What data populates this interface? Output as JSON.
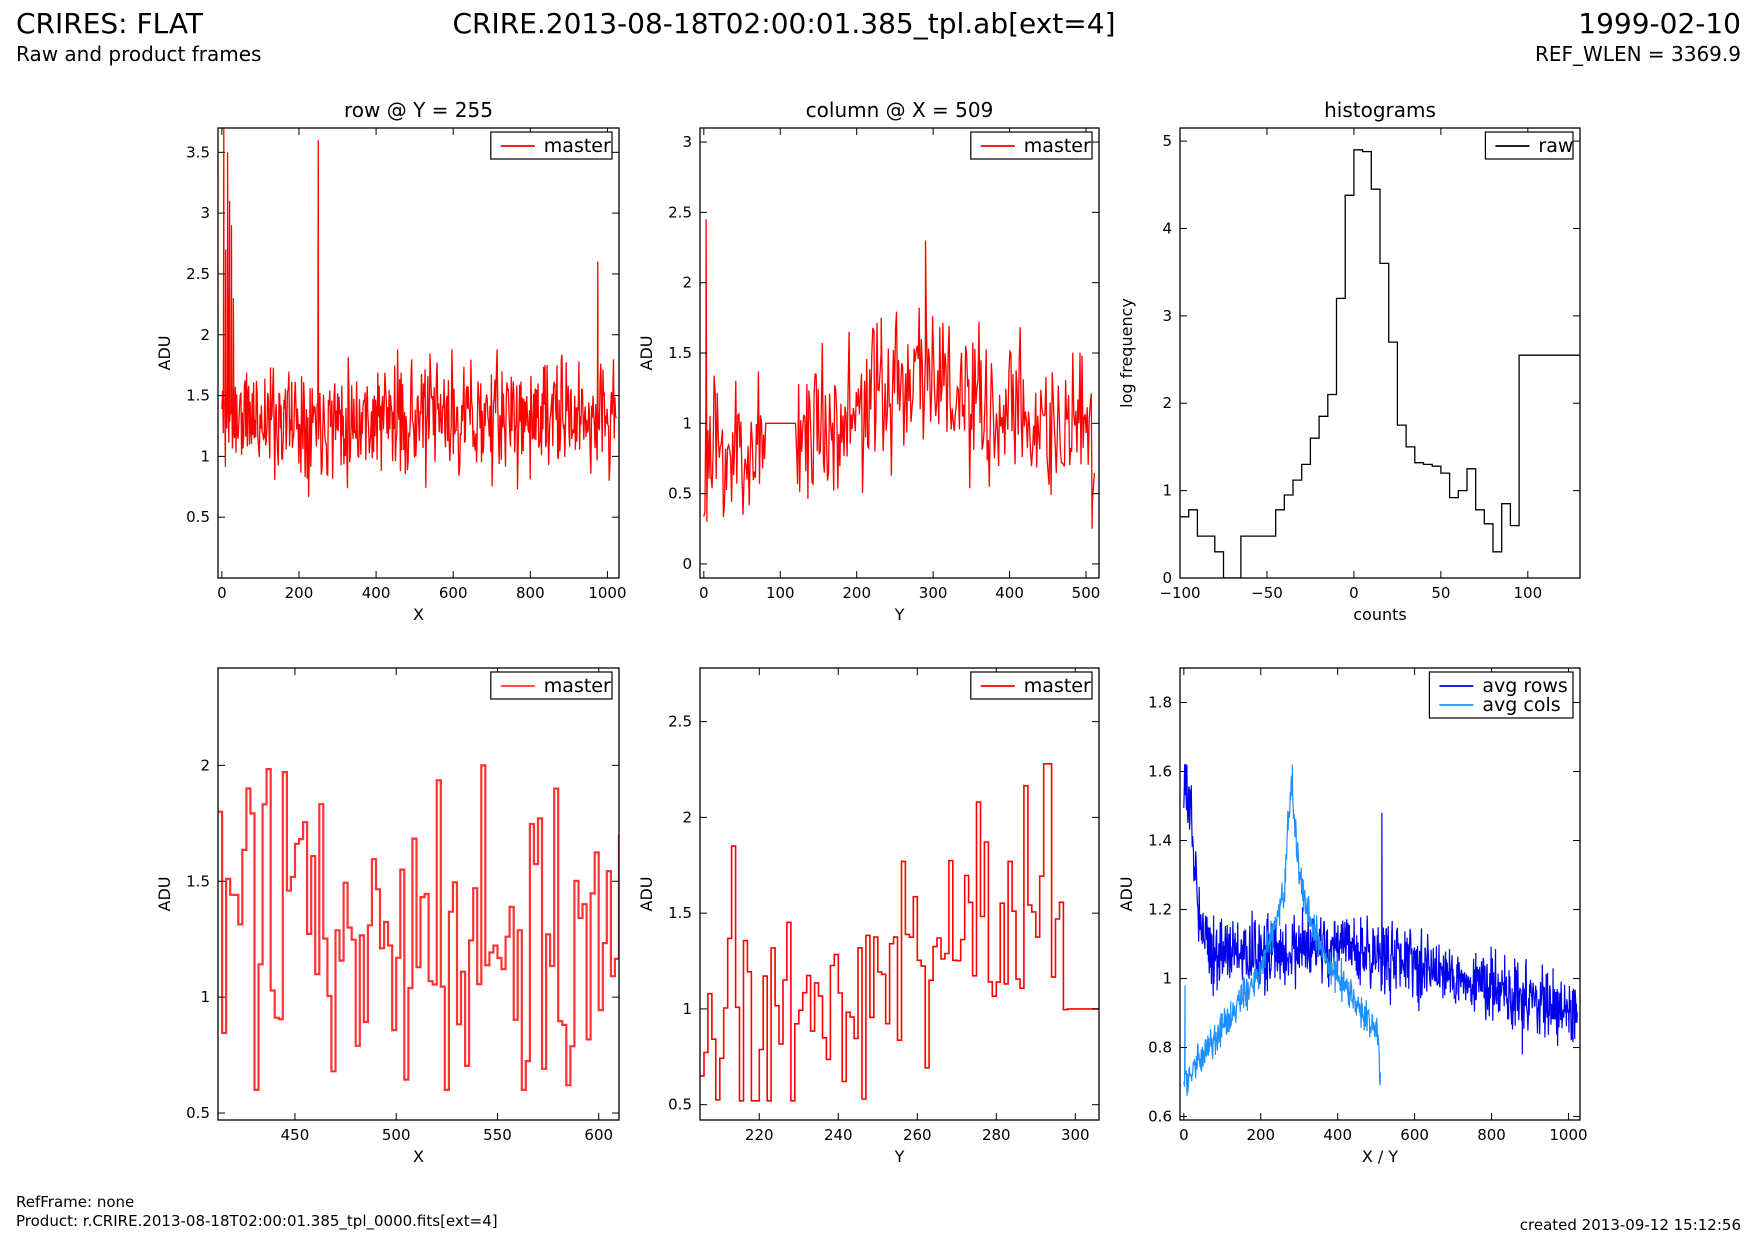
{
  "header": {
    "title_left": "CRIRES: FLAT",
    "subtitle_left": "Raw and product frames",
    "title_center": "CRIRE.2013-08-18T02:00:01.385_tpl.ab[ext=4]",
    "title_right": "1999-02-10",
    "subtitle_right": "REF_WLEN = 3369.9"
  },
  "footer": {
    "refframe": "RefFrame: none",
    "product": "Product: r.CRIRE.2013-08-18T02:00:01.385_tpl_0000.fits[ext=4]",
    "created": "created 2013-09-12 15:12:56"
  },
  "colors": {
    "master": "#ff0000",
    "master_zoom": "#ff3333",
    "raw": "#000000",
    "avg_rows": "#0000ee",
    "avg_cols": "#1e8fff"
  },
  "chart_data": [
    {
      "type": "line",
      "title": "row @ Y = 255",
      "xlabel": "X",
      "ylabel": "ADU",
      "xlim": [
        -10,
        1030
      ],
      "ylim": [
        0.0,
        3.7
      ],
      "xticks": [
        0,
        200,
        400,
        600,
        800,
        1000
      ],
      "yticks": [
        0.5,
        1.0,
        1.5,
        2.0,
        2.5,
        3.0,
        3.5
      ],
      "legend": "top-right",
      "series": [
        {
          "name": "master",
          "color": "#ff0000",
          "style": "noise",
          "seed": 11,
          "n": 560,
          "x_range": [
            0,
            1023
          ],
          "base": 1.32,
          "amp": 0.23,
          "y_min": 0.3,
          "y_max": 1.88,
          "spikes": [
            [
              5,
              3.7
            ],
            [
              10,
              2.7
            ],
            [
              15,
              3.5
            ],
            [
              20,
              3.1
            ],
            [
              25,
              2.9
            ],
            [
              30,
              2.3
            ],
            [
              250,
              3.6
            ],
            [
              975,
              2.6
            ]
          ]
        }
      ]
    },
    {
      "type": "line",
      "title": "column @ X = 509",
      "xlabel": "Y",
      "ylabel": "ADU",
      "xlim": [
        -5,
        517
      ],
      "ylim": [
        -0.1,
        3.1
      ],
      "xticks": [
        0,
        100,
        200,
        300,
        400,
        500
      ],
      "yticks": [
        0.0,
        0.5,
        1.0,
        1.5,
        2.0,
        2.5,
        3.0
      ],
      "legend": "top-right",
      "series": [
        {
          "name": "master",
          "color": "#ff0000",
          "style": "noise",
          "seed": 23,
          "n": 380,
          "x_range": [
            0,
            511
          ],
          "trend": [
            [
              0,
              0.72
            ],
            [
              80,
              0.85
            ],
            [
              150,
              1.0
            ],
            [
              200,
              1.05
            ],
            [
              290,
              1.45
            ],
            [
              350,
              1.05
            ],
            [
              420,
              1.05
            ],
            [
              511,
              0.85
            ]
          ],
          "amp": 0.27,
          "y_min": 0.12,
          "y_max": 2.1,
          "flat": [
            [
              80,
              120,
              1.0
            ]
          ],
          "spikes": [
            [
              3,
              2.45
            ],
            [
              4,
              0.3
            ],
            [
              232,
              1.75
            ],
            [
              290,
              2.3
            ],
            [
              508,
              0.25
            ]
          ]
        }
      ]
    },
    {
      "type": "line",
      "title": "histograms",
      "xlabel": "counts",
      "ylabel": "log frequency",
      "xlim": [
        -100,
        130
      ],
      "ylim": [
        0,
        5.15
      ],
      "xticks": [
        -100,
        -50,
        0,
        50,
        100
      ],
      "yticks": [
        0,
        1,
        2,
        3,
        4,
        5
      ],
      "legend": "top-right",
      "series": [
        {
          "name": "raw",
          "color": "#000000",
          "style": "step",
          "points": [
            [
              -100,
              0.7
            ],
            [
              -95,
              0.78
            ],
            [
              -90,
              0.48
            ],
            [
              -80,
              0.3
            ],
            [
              -75,
              0.0
            ],
            [
              -70,
              0.0
            ],
            [
              -65,
              0.48
            ],
            [
              -45,
              0.78
            ],
            [
              -40,
              0.95
            ],
            [
              -35,
              1.12
            ],
            [
              -30,
              1.3
            ],
            [
              -25,
              1.6
            ],
            [
              -20,
              1.85
            ],
            [
              -15,
              2.1
            ],
            [
              -10,
              3.2
            ],
            [
              -5,
              4.38
            ],
            [
              0,
              4.9
            ],
            [
              5,
              4.88
            ],
            [
              10,
              4.45
            ],
            [
              15,
              3.6
            ],
            [
              20,
              2.7
            ],
            [
              25,
              1.75
            ],
            [
              30,
              1.5
            ],
            [
              35,
              1.32
            ],
            [
              40,
              1.3
            ],
            [
              45,
              1.28
            ],
            [
              50,
              1.2
            ],
            [
              55,
              0.92
            ],
            [
              60,
              1.0
            ],
            [
              65,
              1.25
            ],
            [
              70,
              0.78
            ],
            [
              75,
              0.62
            ],
            [
              80,
              0.3
            ],
            [
              85,
              0.85
            ],
            [
              90,
              0.6
            ],
            [
              95,
              2.55
            ],
            [
              130,
              2.55
            ]
          ]
        }
      ]
    },
    {
      "type": "line",
      "title": "",
      "xlabel": "X",
      "ylabel": "ADU",
      "xlim": [
        412,
        610
      ],
      "ylim": [
        0.47,
        2.42
      ],
      "xticks": [
        450,
        500,
        550,
        600
      ],
      "yticks": [
        0.5,
        1.0,
        1.5,
        2.0
      ],
      "legend": "top-right",
      "series": [
        {
          "name": "master",
          "color": "#ff3333",
          "style": "step",
          "width": 2.2,
          "gen": {
            "seed": 31,
            "x0": 412,
            "x1": 610,
            "dx": 2,
            "base": 1.3,
            "amp": 0.33,
            "y_min": 0.6,
            "y_max": 2.0,
            "fixed": [
              [
                542,
                2.0
              ],
              [
                468,
                0.68
              ],
              [
                562,
                0.6
              ],
              [
                584,
                0.62
              ]
            ]
          }
        }
      ]
    },
    {
      "type": "line",
      "title": "",
      "xlabel": "Y",
      "ylabel": "ADU",
      "xlim": [
        205,
        306
      ],
      "ylim": [
        0.42,
        2.78
      ],
      "xticks": [
        220,
        240,
        260,
        280,
        300
      ],
      "yticks": [
        0.5,
        1.0,
        1.5,
        2.0,
        2.5
      ],
      "legend": "top-right",
      "series": [
        {
          "name": "master",
          "color": "#ff0000",
          "style": "step",
          "width": 1.6,
          "gen": {
            "seed": 47,
            "x0": 205,
            "x1": 306,
            "dx": 1,
            "trend": [
              [
                205,
                0.95
              ],
              [
                240,
                1.1
              ],
              [
                265,
                1.3
              ],
              [
                290,
                1.5
              ],
              [
                298,
                1.2
              ],
              [
                306,
                1.0
              ]
            ],
            "amp": 0.3,
            "y_min": 0.52,
            "y_max": 2.3,
            "fixed": [
              [
                205,
                0.65
              ],
              [
                213,
                1.85
              ],
              [
                215,
                0.52
              ],
              [
                292,
                2.28
              ],
              [
                293,
                2.28
              ],
              [
                275,
                2.08
              ],
              [
                298,
                1.0
              ],
              [
                299,
                1.0
              ],
              [
                300,
                1.0
              ],
              [
                301,
                1.0
              ],
              [
                302,
                1.0
              ],
              [
                303,
                1.0
              ],
              [
                304,
                1.0
              ],
              [
                305,
                1.0
              ],
              [
                306,
                1.0
              ]
            ]
          }
        }
      ]
    },
    {
      "type": "line",
      "title": "",
      "xlabel": "X / Y",
      "ylabel": "ADU",
      "xlim": [
        -10,
        1030
      ],
      "ylim": [
        0.59,
        1.9
      ],
      "xticks": [
        0,
        200,
        400,
        600,
        800,
        1000
      ],
      "yticks": [
        0.6,
        0.8,
        1.0,
        1.2,
        1.4,
        1.6,
        1.8
      ],
      "legend": "top-right",
      "series": [
        {
          "name": "avg rows",
          "color": "#0000ee",
          "style": "noise",
          "width": 1.2,
          "seed": 53,
          "n": 900,
          "x_range": [
            0,
            1023
          ],
          "trend": [
            [
              0,
              1.55
            ],
            [
              15,
              1.5
            ],
            [
              40,
              1.2
            ],
            [
              70,
              1.08
            ],
            [
              200,
              1.07
            ],
            [
              400,
              1.09
            ],
            [
              600,
              1.05
            ],
            [
              800,
              0.97
            ],
            [
              1023,
              0.9
            ]
          ],
          "amp": 0.05,
          "y_min": 0.72,
          "y_max": 1.62,
          "spikes": [
            [
              2,
              1.62
            ],
            [
              515,
              1.48
            ],
            [
              960,
              1.03
            ],
            [
              880,
              0.78
            ]
          ]
        },
        {
          "name": "avg cols",
          "color": "#1e8fff",
          "style": "noise",
          "width": 1.2,
          "seed": 71,
          "n": 500,
          "x_range": [
            0,
            511
          ],
          "trend": [
            [
              0,
              0.7
            ],
            [
              100,
              0.85
            ],
            [
              200,
              1.03
            ],
            [
              260,
              1.25
            ],
            [
              280,
              1.58
            ],
            [
              300,
              1.3
            ],
            [
              350,
              1.1
            ],
            [
              450,
              0.92
            ],
            [
              505,
              0.85
            ],
            [
              511,
              0.69
            ]
          ],
          "amp": 0.025,
          "y_min": 0.66,
          "y_max": 1.62,
          "spikes": [
            [
              3,
              0.98
            ],
            [
              282,
              1.62
            ],
            [
              510,
              0.69
            ]
          ]
        }
      ]
    }
  ]
}
